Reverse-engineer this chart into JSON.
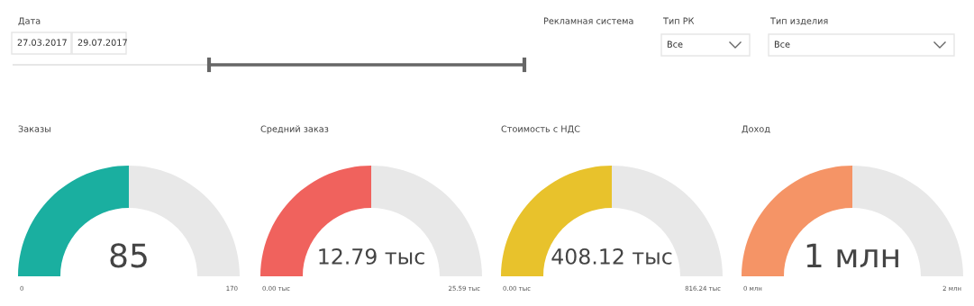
{
  "chart_data": [
    {
      "type": "other",
      "annotations": [
        "Дата",
        "27.03.2017",
        "29.07.2017",
        "Рекламная система",
        "Тип РК",
        "Все",
        "Тип изделия",
        "Все"
      ]
    },
    {
      "type": "donut",
      "title": "Заказы",
      "categories": [
        null,
        null
      ],
      "values": [
        50,
        50
      ],
      "colors": [
        "#1aafa0",
        "#e8e8e8"
      ],
      "annotations": [
        "85",
        "0",
        "170"
      ]
    },
    {
      "type": "donut",
      "title": "Средний заказ",
      "categories": [
        null,
        null
      ],
      "values": [
        50,
        50
      ],
      "colors": [
        "#f0625d",
        "#e8e8e8"
      ],
      "annotations": [
        "12.79 тыс",
        "0.00 тыс",
        "25.59 тыс"
      ]
    },
    {
      "type": "donut",
      "title": "Стоимость с НДС",
      "categories": [
        null,
        null
      ],
      "values": [
        50,
        50
      ],
      "colors": [
        "#e8c22c",
        "#e8e8e8"
      ],
      "annotations": [
        "408.12 тыс",
        "0.00 тыс",
        "816.24 тыс"
      ]
    },
    {
      "type": "donut",
      "title": "Доход",
      "categories": [
        null,
        null
      ],
      "values": [
        50,
        50
      ],
      "colors": [
        "#f59466",
        "#e8e8e8"
      ],
      "annotations": [
        "1 млн",
        "0 млн",
        "2 млн"
      ]
    }
  ]
}
